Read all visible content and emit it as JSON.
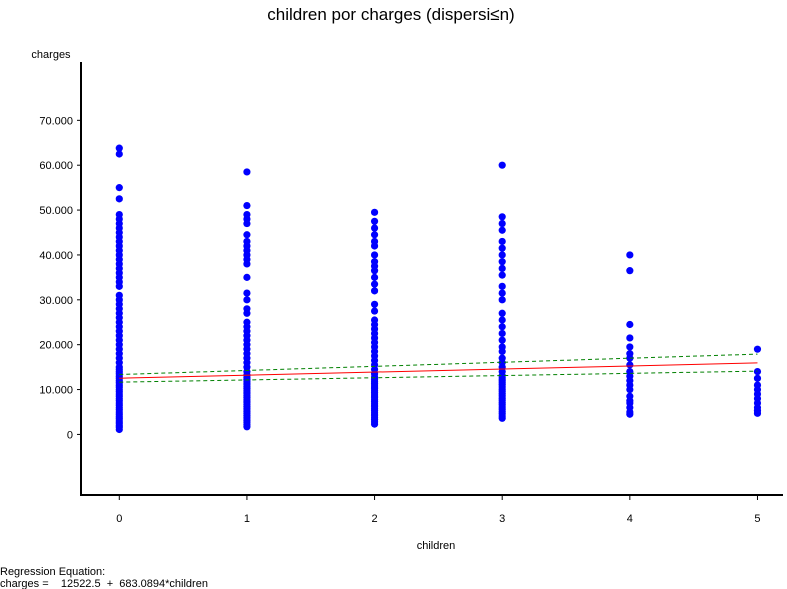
{
  "chart_data": {
    "type": "scatter",
    "title": "children por charges (dispersi≤n)",
    "xlabel": "children",
    "ylabel": "charges",
    "xlim": [
      -0.3,
      5.2
    ],
    "ylim": [
      -13500,
      83000
    ],
    "x_ticks": [
      0,
      1,
      2,
      3,
      4,
      5
    ],
    "x_tick_labels": [
      "0",
      "1",
      "2",
      "3",
      "4",
      "5"
    ],
    "y_ticks": [
      0,
      10000,
      20000,
      30000,
      40000,
      50000,
      60000,
      70000
    ],
    "y_tick_labels": [
      "0",
      "10.000",
      "20.000",
      "30.000",
      "40.000",
      "50.000",
      "60.000",
      "70.000"
    ],
    "grid": false,
    "legend": "none",
    "colors": {
      "points": "#0000ff",
      "regression": "#ff0000",
      "confidence": "#008000"
    },
    "series": [
      {
        "type": "scatter",
        "groups": [
          {
            "x": 0,
            "values": [
              1100,
              1600,
              2000,
              2500,
              3000,
              3500,
              4000,
              4500,
              5000,
              5500,
              6000,
              6500,
              7000,
              7500,
              8000,
              8500,
              9000,
              9500,
              10000,
              10500,
              11000,
              11500,
              12000,
              12500,
              13000,
              13500,
              14000,
              14500,
              15000,
              16000,
              17000,
              18000,
              19000,
              20000,
              21000,
              22000,
              23000,
              24000,
              25000,
              26000,
              27000,
              28000,
              29000,
              30000,
              31000,
              33000,
              34000,
              35000,
              36000,
              37000,
              38000,
              39000,
              40000,
              41000,
              42000,
              43000,
              44000,
              45000,
              46000,
              47000,
              48000,
              49000,
              52500,
              55000,
              62500,
              63800
            ]
          },
          {
            "x": 1,
            "values": [
              1700,
              2200,
              2700,
              3200,
              3700,
              4200,
              4700,
              5200,
              5700,
              6200,
              6700,
              7200,
              7700,
              8200,
              8700,
              9200,
              9700,
              10200,
              10700,
              11200,
              11700,
              12200,
              12700,
              13200,
              14000,
              15000,
              16000,
              17000,
              18000,
              19000,
              20000,
              21000,
              22000,
              23000,
              24000,
              25000,
              27000,
              28000,
              30000,
              31500,
              35000,
              38000,
              39000,
              40000,
              41000,
              42000,
              43000,
              44500,
              47000,
              48000,
              49000,
              51000,
              58500
            ]
          },
          {
            "x": 2,
            "values": [
              2300,
              2800,
              3300,
              3800,
              4300,
              4800,
              5300,
              5800,
              6300,
              6800,
              7300,
              7800,
              8300,
              8800,
              9300,
              9800,
              10300,
              10800,
              11300,
              11800,
              12300,
              12800,
              13500,
              14500,
              15500,
              16500,
              17500,
              18500,
              19500,
              20500,
              21500,
              22500,
              23500,
              24500,
              25500,
              27500,
              29000,
              32000,
              33500,
              35000,
              36500,
              37500,
              38500,
              40000,
              42000,
              43000,
              44500,
              46000,
              47500,
              49500
            ]
          },
          {
            "x": 3,
            "values": [
              3600,
              4100,
              4600,
              5100,
              5600,
              6100,
              6600,
              7100,
              7600,
              8100,
              8600,
              9100,
              9600,
              10100,
              10600,
              11100,
              11600,
              12100,
              12600,
              13100,
              14000,
              15000,
              16000,
              17000,
              18500,
              19500,
              21000,
              22500,
              24000,
              25500,
              27000,
              30000,
              31500,
              33000,
              35500,
              37000,
              38500,
              40000,
              41500,
              43000,
              45500,
              47000,
              48500,
              60000
            ]
          },
          {
            "x": 4,
            "values": [
              4500,
              5000,
              6000,
              7000,
              7500,
              8500,
              10000,
              11000,
              12000,
              13000,
              14000,
              15500,
              17000,
              18000,
              19500,
              21500,
              24500,
              36500,
              40000
            ]
          },
          {
            "x": 5,
            "values": [
              4700,
              5300,
              6000,
              7000,
              8000,
              9000,
              10000,
              11000,
              12500,
              14000,
              19000
            ]
          }
        ]
      },
      {
        "type": "line",
        "role": "regression",
        "x": [
          0,
          5
        ],
        "y": [
          12522.5,
          15938.0
        ]
      },
      {
        "type": "line",
        "role": "upper-confidence",
        "x": [
          0,
          5
        ],
        "y": [
          13350,
          17900
        ]
      },
      {
        "type": "line",
        "role": "lower-confidence",
        "x": [
          0,
          5
        ],
        "y": [
          11650,
          14100
        ]
      }
    ]
  },
  "regression": {
    "heading": "Regression Equation:",
    "equation": "charges =    12522.5  +  683.0894*children"
  }
}
